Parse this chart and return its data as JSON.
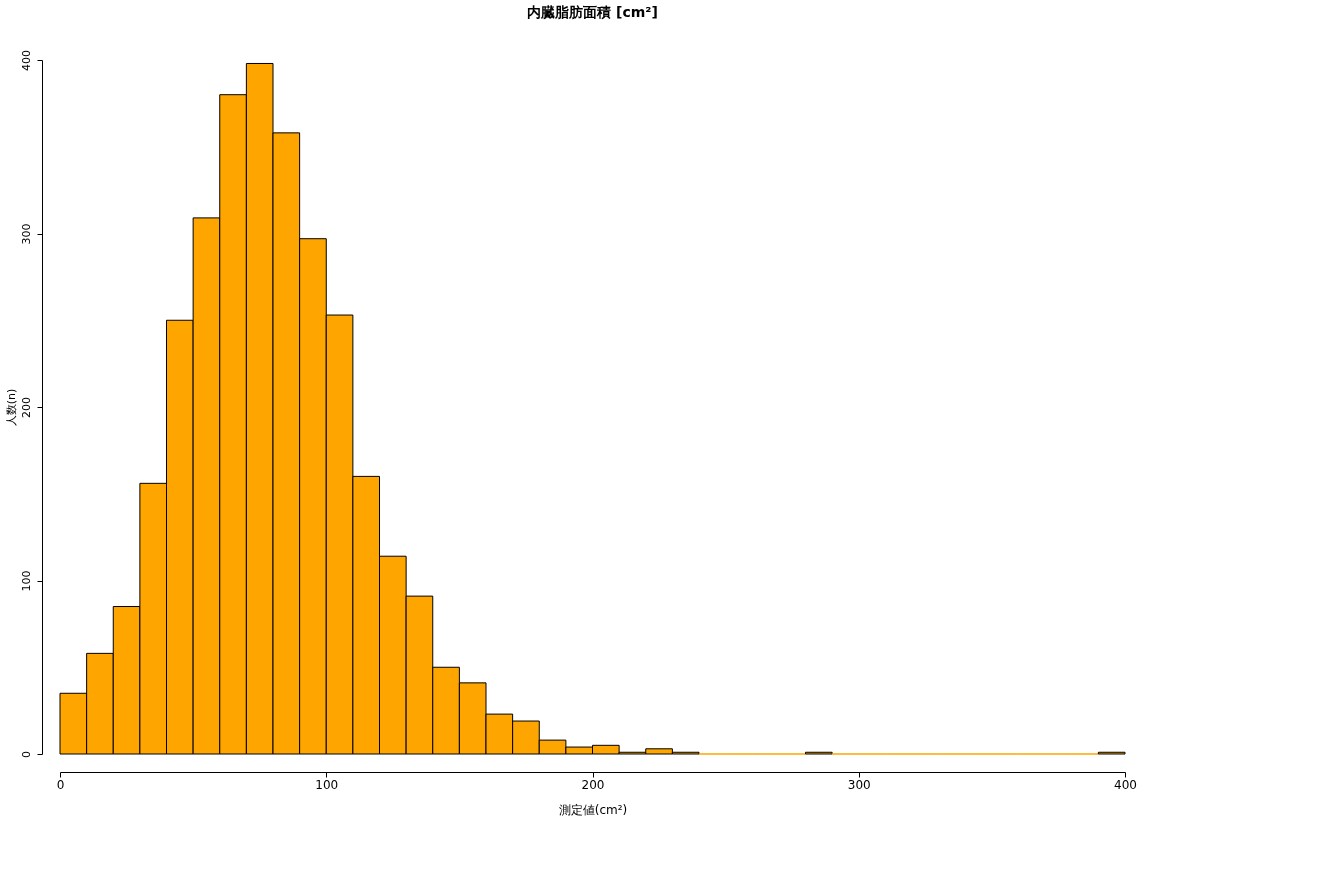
{
  "chart_data": {
    "type": "histogram",
    "title": "内臓脂肪面積 [cm²]",
    "xlabel": "測定値(cm²)",
    "ylabel": "人数(n)",
    "bins": [
      0,
      10,
      20,
      30,
      40,
      50,
      60,
      70,
      80,
      90,
      100,
      110,
      120,
      130,
      140,
      150,
      160,
      170,
      180,
      190,
      200,
      210,
      220,
      230,
      240,
      250,
      260,
      270,
      280,
      290,
      300,
      310,
      320,
      330,
      340,
      350,
      360,
      370,
      380,
      390,
      400
    ],
    "values": [
      35,
      58,
      85,
      156,
      250,
      309,
      380,
      398,
      358,
      297,
      253,
      160,
      114,
      91,
      50,
      41,
      23,
      19,
      8,
      4,
      5,
      1,
      3,
      1,
      0,
      0,
      0,
      0,
      1,
      0,
      0,
      0,
      0,
      0,
      0,
      0,
      0,
      0,
      0,
      1
    ],
    "color": "#ffa500",
    "xlim": [
      0,
      400
    ],
    "xticks": [
      0,
      100,
      200,
      300,
      400
    ],
    "ylim": [
      0,
      400
    ],
    "yticks": [
      0,
      100,
      200,
      300,
      400
    ],
    "grid": false
  }
}
